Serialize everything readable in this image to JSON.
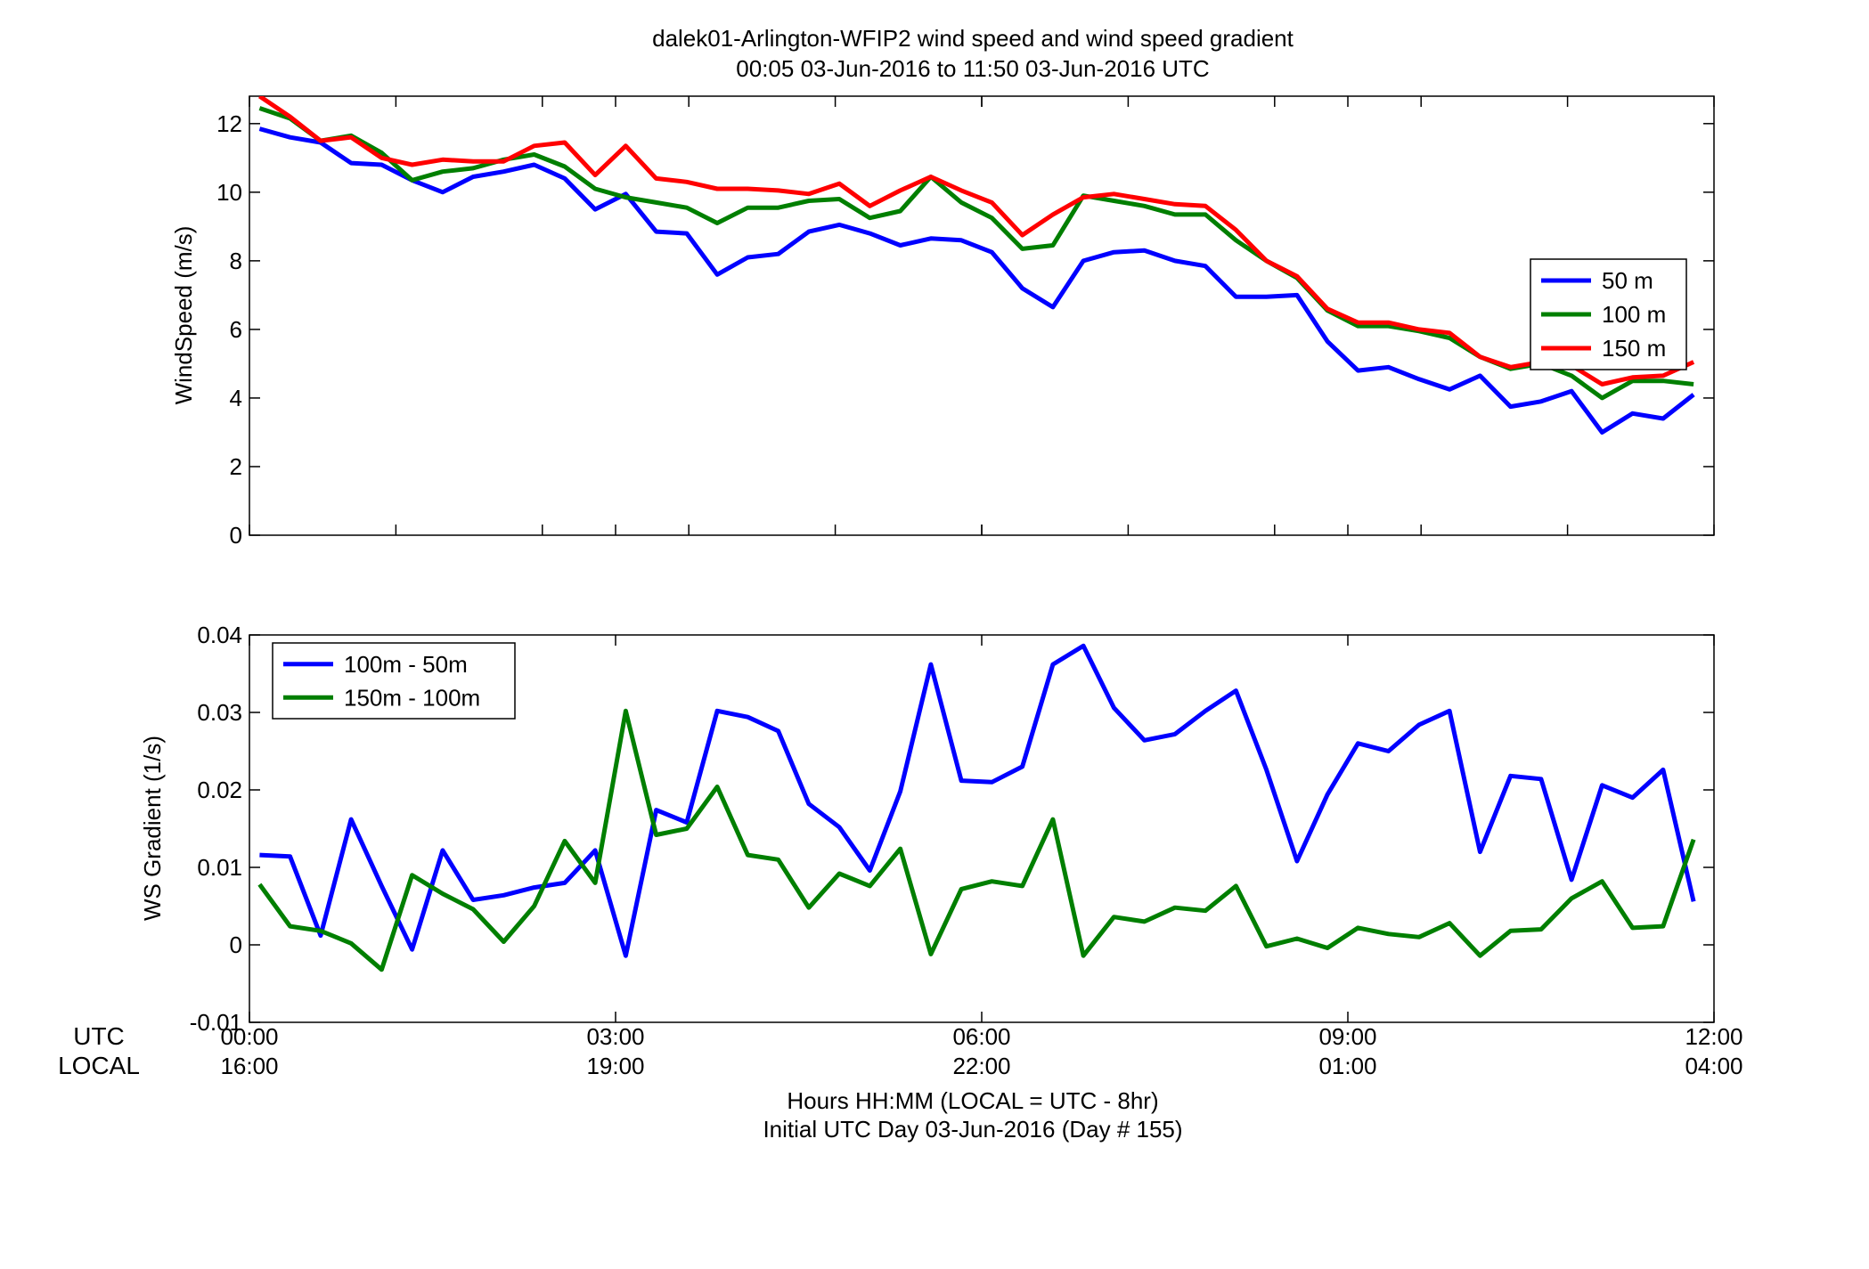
{
  "title_line1": "dalek01-Arlington-WFIP2  wind speed and wind speed gradient",
  "title_line2": "00:05 03-Jun-2016 to 11:50 03-Jun-2016  UTC",
  "xaxis": {
    "row_label_utc": "UTC",
    "row_label_local": "LOCAL",
    "utc_ticks": [
      "00:00",
      "03:00",
      "06:00",
      "09:00",
      "12:00"
    ],
    "local_ticks": [
      "16:00",
      "19:00",
      "22:00",
      "01:00",
      "04:00"
    ],
    "xlabel_line1": "Hours HH:MM  (LOCAL = UTC - 8hr)",
    "xlabel_line2": "Initial UTC Day 03-Jun-2016 (Day # 155)"
  },
  "chart_data": [
    {
      "type": "line",
      "ylabel": "WindSpeed (m/s)",
      "xlim": [
        0,
        12
      ],
      "ylim": [
        0,
        12.8
      ],
      "yticks": [
        0,
        2,
        4,
        6,
        8,
        10,
        12
      ],
      "ytick_labels": [
        "0",
        "2",
        "4",
        "6",
        "8",
        "10",
        "12"
      ],
      "x_minor_ticks_hours": [
        1.2,
        2.4,
        3.6,
        4.8,
        6,
        7.2,
        8.4,
        9.6,
        10.8
      ],
      "grid": false,
      "legend_position": "right",
      "x": [
        0.083,
        0.333,
        0.583,
        0.833,
        1.083,
        1.333,
        1.583,
        1.833,
        2.083,
        2.333,
        2.583,
        2.833,
        3.083,
        3.333,
        3.583,
        3.833,
        4.083,
        4.333,
        4.583,
        4.833,
        5.083,
        5.333,
        5.583,
        5.833,
        6.083,
        6.333,
        6.583,
        6.833,
        7.083,
        7.333,
        7.583,
        7.833,
        8.083,
        8.333,
        8.583,
        8.833,
        9.083,
        9.333,
        9.583,
        9.833,
        10.083,
        10.333,
        10.583,
        10.833,
        11.083,
        11.333,
        11.583,
        11.833
      ],
      "series": [
        {
          "name": "50 m",
          "color": "#0000ff",
          "values": [
            11.85,
            11.6,
            11.45,
            10.85,
            10.8,
            10.35,
            10.0,
            10.45,
            10.6,
            10.8,
            10.4,
            9.5,
            9.95,
            8.85,
            8.8,
            7.6,
            8.1,
            8.2,
            8.85,
            9.05,
            8.8,
            8.45,
            8.65,
            8.6,
            8.25,
            7.2,
            6.65,
            8.0,
            8.25,
            8.3,
            8.0,
            7.85,
            6.95,
            6.95,
            7.0,
            5.65,
            4.8,
            4.9,
            4.55,
            4.25,
            4.65,
            3.75,
            3.9,
            4.2,
            3.0,
            3.55,
            3.4,
            4.1
          ]
        },
        {
          "name": "100 m",
          "color": "#007f00",
          "values": [
            12.45,
            12.15,
            11.5,
            11.65,
            11.15,
            10.35,
            10.6,
            10.7,
            10.95,
            11.1,
            10.75,
            10.1,
            9.85,
            9.7,
            9.55,
            9.1,
            9.55,
            9.55,
            9.75,
            9.8,
            9.25,
            9.45,
            10.45,
            9.7,
            9.25,
            8.35,
            8.45,
            9.9,
            9.75,
            9.6,
            9.35,
            9.35,
            8.6,
            8.0,
            7.5,
            6.55,
            6.1,
            6.1,
            5.95,
            5.75,
            5.2,
            4.85,
            5.0,
            4.65,
            4.0,
            4.5,
            4.5,
            4.4
          ]
        },
        {
          "name": "150 m",
          "color": "#ff0000",
          "values": [
            12.8,
            12.2,
            11.5,
            11.6,
            11.0,
            10.8,
            10.95,
            10.9,
            10.9,
            11.35,
            11.45,
            10.5,
            11.35,
            10.4,
            10.3,
            10.1,
            10.1,
            10.05,
            9.95,
            10.25,
            9.6,
            10.05,
            10.45,
            10.05,
            9.7,
            8.75,
            9.35,
            9.85,
            9.95,
            9.8,
            9.65,
            9.6,
            8.9,
            8.0,
            7.55,
            6.6,
            6.2,
            6.2,
            6.0,
            5.9,
            5.2,
            4.9,
            5.05,
            4.95,
            4.4,
            4.6,
            4.65,
            5.05
          ]
        }
      ]
    },
    {
      "type": "line",
      "ylabel": "WS Gradient (1/s)",
      "xlim": [
        0,
        12
      ],
      "ylim": [
        -0.01,
        0.04
      ],
      "yticks": [
        -0.01,
        0,
        0.01,
        0.02,
        0.03,
        0.04
      ],
      "ytick_labels": [
        "-0.01",
        "0",
        "0.01",
        "0.02",
        "0.03",
        "0.04"
      ],
      "x_minor_ticks_hours": [],
      "grid": false,
      "legend_position": "top-left",
      "x": [
        0.083,
        0.333,
        0.583,
        0.833,
        1.083,
        1.333,
        1.583,
        1.833,
        2.083,
        2.333,
        2.583,
        2.833,
        3.083,
        3.333,
        3.583,
        3.833,
        4.083,
        4.333,
        4.583,
        4.833,
        5.083,
        5.333,
        5.583,
        5.833,
        6.083,
        6.333,
        6.583,
        6.833,
        7.083,
        7.333,
        7.583,
        7.833,
        8.083,
        8.333,
        8.583,
        8.833,
        9.083,
        9.333,
        9.583,
        9.833,
        10.083,
        10.333,
        10.583,
        10.833,
        11.083,
        11.333,
        11.583,
        11.833
      ],
      "series": [
        {
          "name": "100m - 50m",
          "color": "#0000ff",
          "values": [
            0.0116,
            0.0114,
            0.0012,
            0.0162,
            0.0076,
            -0.0006,
            0.0122,
            0.0058,
            0.0064,
            0.0074,
            0.008,
            0.0122,
            -0.0014,
            0.0174,
            0.0158,
            0.0302,
            0.0294,
            0.0276,
            0.0182,
            0.0152,
            0.0096,
            0.0198,
            0.0362,
            0.0212,
            0.021,
            0.023,
            0.0362,
            0.0386,
            0.0306,
            0.0264,
            0.0272,
            0.0302,
            0.0328,
            0.0226,
            0.0108,
            0.0194,
            0.026,
            0.025,
            0.0284,
            0.0302,
            0.012,
            0.0218,
            0.0214,
            0.0084,
            0.0206,
            0.019,
            0.0226,
            0.0056
          ]
        },
        {
          "name": "150m - 100m",
          "color": "#007f00",
          "values": [
            0.0078,
            0.0024,
            0.0018,
            0.0002,
            -0.0032,
            0.009,
            0.0066,
            0.0046,
            0.0004,
            0.005,
            0.0134,
            0.008,
            0.0302,
            0.0142,
            0.015,
            0.0204,
            0.0116,
            0.011,
            0.0048,
            0.0092,
            0.0076,
            0.0124,
            -0.0012,
            0.0072,
            0.0082,
            0.0076,
            0.0162,
            -0.0014,
            0.0036,
            0.003,
            0.0048,
            0.0044,
            0.0076,
            -0.0002,
            0.0008,
            -0.0004,
            0.0022,
            0.0014,
            0.001,
            0.0028,
            -0.0014,
            0.0018,
            0.002,
            0.006,
            0.0082,
            0.0022,
            0.0024,
            0.0136
          ]
        }
      ]
    }
  ]
}
